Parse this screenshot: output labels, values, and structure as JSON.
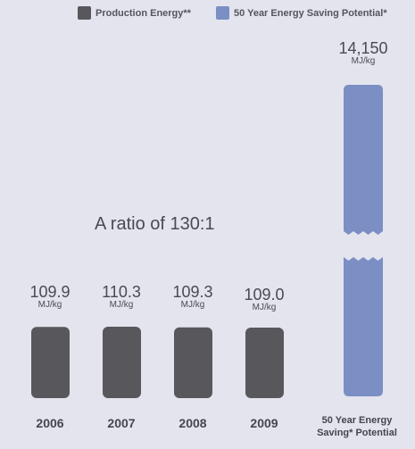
{
  "chart_data": {
    "type": "bar",
    "title": "",
    "annotation": "A ratio of 130:1",
    "unit": "MJ/kg",
    "legend": [
      {
        "name": "Production Energy**",
        "color": "#58585c"
      },
      {
        "name": "50 Year Energy Saving Potential*",
        "color": "#7b8fc4"
      }
    ],
    "legend_placement": "top-right",
    "axis_break": true,
    "production": [
      {
        "category": "2006",
        "value": 109.9,
        "value_label": "109.9"
      },
      {
        "category": "2007",
        "value": 110.3,
        "value_label": "110.3"
      },
      {
        "category": "2008",
        "value": 109.3,
        "value_label": "109.3"
      },
      {
        "category": "2009",
        "value": 109.0,
        "value_label": "109.0"
      }
    ],
    "saving": {
      "category_line1": "50 Year Energy",
      "category_line2": "Saving* Potential",
      "value": 14150,
      "value_label": "14,150"
    },
    "grid": false
  }
}
